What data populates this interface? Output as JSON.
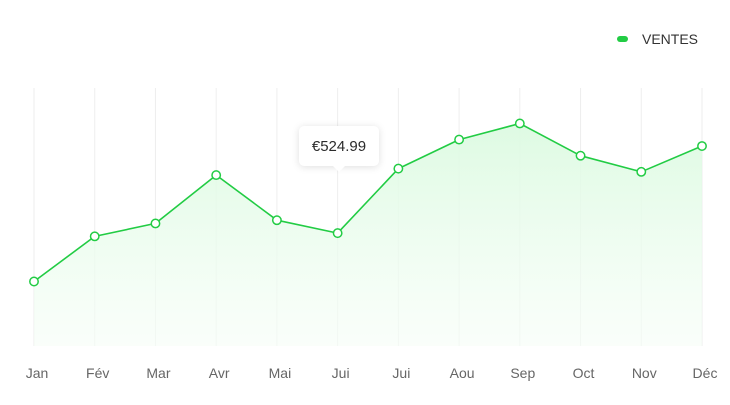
{
  "legend": {
    "label": "VENTES"
  },
  "colors": {
    "line": "#22cc44",
    "area": "#e4fbe7",
    "grid": "#eeeeee",
    "tick": "#666666"
  },
  "tooltip": {
    "text": "€524.99"
  },
  "chart_data": {
    "type": "area",
    "categories": [
      "Jan",
      "Fév",
      "Mar",
      "Avr",
      "Mai",
      "Jui",
      "Jui",
      "Aou",
      "Sep",
      "Oct",
      "Nov",
      "Déc"
    ],
    "series": [
      {
        "name": "VENTES",
        "values": [
          200,
          340,
          380,
          530,
          390,
          350,
          550,
          640,
          690,
          590,
          540,
          620
        ]
      }
    ],
    "ylim": [
      0,
      800
    ],
    "grid": "vertical",
    "legend_position": "top-right",
    "highlighted_index": 5
  }
}
